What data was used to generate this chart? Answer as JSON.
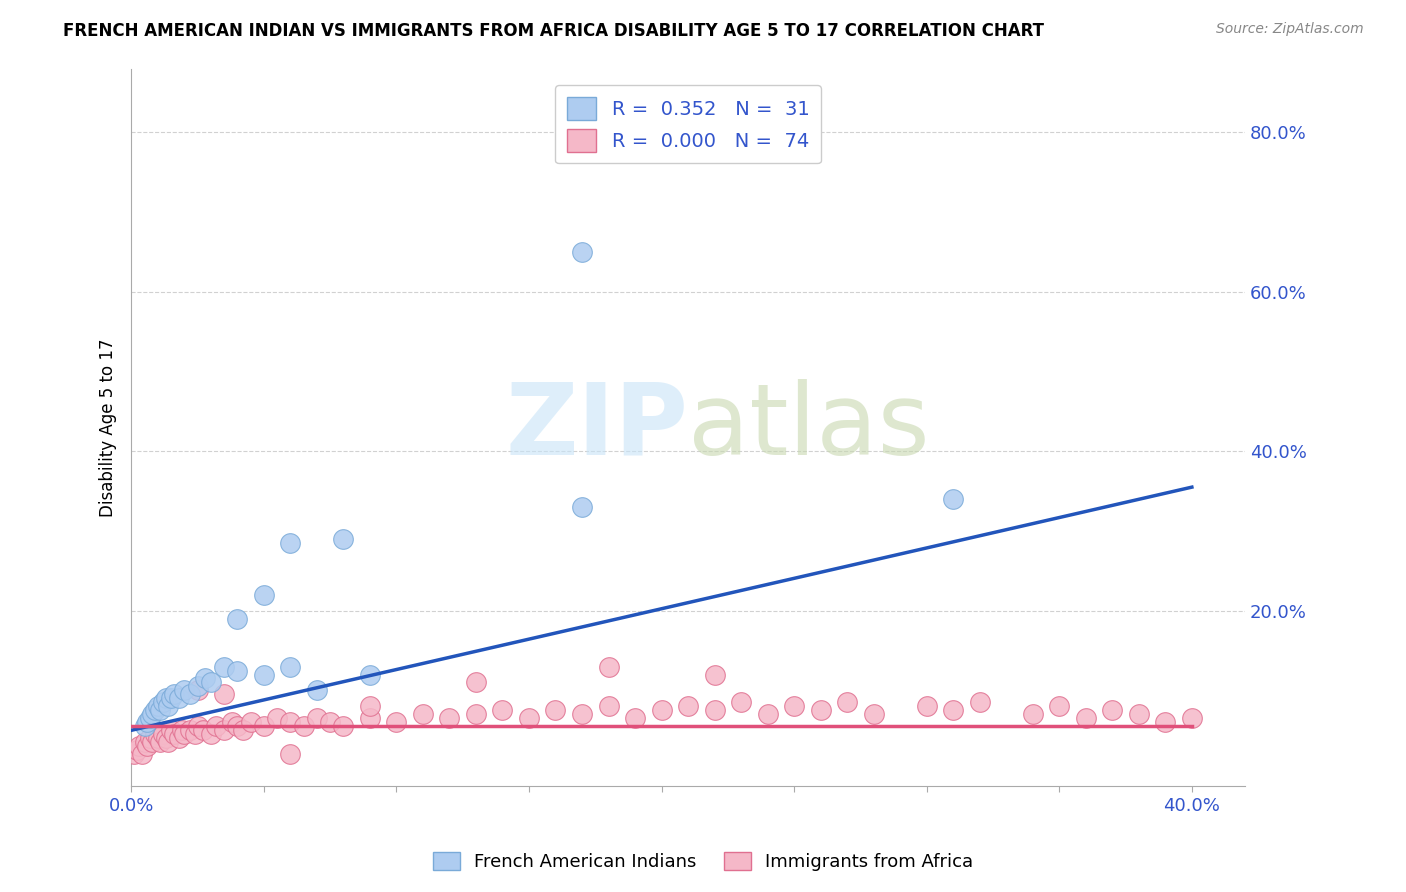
{
  "title": "FRENCH AMERICAN INDIAN VS IMMIGRANTS FROM AFRICA DISABILITY AGE 5 TO 17 CORRELATION CHART",
  "source": "Source: ZipAtlas.com",
  "ylabel": "Disability Age 5 to 17",
  "xlim": [
    0.0,
    0.42
  ],
  "ylim": [
    -0.02,
    0.88
  ],
  "xticks": [
    0.0,
    0.05,
    0.1,
    0.15,
    0.2,
    0.25,
    0.3,
    0.35,
    0.4
  ],
  "xtick_labels": [
    "0.0%",
    "",
    "",
    "",
    "",
    "",
    "",
    "",
    "40.0%"
  ],
  "ytick_vals_right": [
    0.2,
    0.4,
    0.6,
    0.8
  ],
  "ytick_labels_right": [
    "20.0%",
    "40.0%",
    "60.0%",
    "80.0%"
  ],
  "watermark_zip": "ZIP",
  "watermark_atlas": "atlas",
  "series1_name": "French American Indians",
  "series1_color": "#aeccf0",
  "series1_border": "#7aaad8",
  "series1_R": "0.352",
  "series1_N": "31",
  "series1_line_color": "#2255bb",
  "series2_name": "Immigrants from Africa",
  "series2_color": "#f5b8c8",
  "series2_border": "#e07090",
  "series2_R": "0.000",
  "series2_N": "74",
  "series2_line_color": "#e0507a",
  "legend_text_color": "#3355cc",
  "background_color": "#ffffff",
  "grid_color": "#cccccc",
  "blue_line_x0": 0.0,
  "blue_line_y0": 0.05,
  "blue_line_x1": 0.4,
  "blue_line_y1": 0.355,
  "pink_line_x0": 0.0,
  "pink_line_y0": 0.055,
  "pink_line_x1": 0.4,
  "pink_line_y1": 0.055,
  "blue_x": [
    0.005,
    0.006,
    0.007,
    0.008,
    0.009,
    0.01,
    0.011,
    0.012,
    0.013,
    0.014,
    0.015,
    0.016,
    0.018,
    0.02,
    0.022,
    0.025,
    0.028,
    0.03,
    0.035,
    0.04,
    0.05,
    0.06,
    0.07,
    0.09,
    0.04,
    0.05,
    0.06,
    0.08,
    0.17,
    0.31,
    0.17
  ],
  "blue_y": [
    0.055,
    0.06,
    0.065,
    0.07,
    0.075,
    0.08,
    0.075,
    0.085,
    0.09,
    0.08,
    0.09,
    0.095,
    0.09,
    0.1,
    0.095,
    0.105,
    0.115,
    0.11,
    0.13,
    0.125,
    0.12,
    0.13,
    0.1,
    0.12,
    0.19,
    0.22,
    0.285,
    0.29,
    0.33,
    0.34,
    0.65
  ],
  "pink_x": [
    0.001,
    0.002,
    0.003,
    0.004,
    0.005,
    0.006,
    0.007,
    0.008,
    0.009,
    0.01,
    0.011,
    0.012,
    0.013,
    0.014,
    0.015,
    0.016,
    0.018,
    0.019,
    0.02,
    0.022,
    0.024,
    0.025,
    0.027,
    0.03,
    0.032,
    0.035,
    0.038,
    0.04,
    0.042,
    0.045,
    0.05,
    0.055,
    0.06,
    0.065,
    0.07,
    0.075,
    0.08,
    0.09,
    0.1,
    0.11,
    0.12,
    0.13,
    0.14,
    0.15,
    0.16,
    0.17,
    0.18,
    0.19,
    0.2,
    0.21,
    0.22,
    0.23,
    0.24,
    0.25,
    0.26,
    0.27,
    0.28,
    0.3,
    0.31,
    0.32,
    0.34,
    0.35,
    0.36,
    0.37,
    0.38,
    0.39,
    0.4,
    0.025,
    0.035,
    0.18,
    0.22,
    0.09,
    0.13,
    0.06
  ],
  "pink_y": [
    0.02,
    0.025,
    0.03,
    0.02,
    0.035,
    0.03,
    0.04,
    0.035,
    0.045,
    0.04,
    0.035,
    0.045,
    0.04,
    0.035,
    0.05,
    0.045,
    0.04,
    0.05,
    0.045,
    0.05,
    0.045,
    0.055,
    0.05,
    0.045,
    0.055,
    0.05,
    0.06,
    0.055,
    0.05,
    0.06,
    0.055,
    0.065,
    0.06,
    0.055,
    0.065,
    0.06,
    0.055,
    0.065,
    0.06,
    0.07,
    0.065,
    0.07,
    0.075,
    0.065,
    0.075,
    0.07,
    0.08,
    0.065,
    0.075,
    0.08,
    0.075,
    0.085,
    0.07,
    0.08,
    0.075,
    0.085,
    0.07,
    0.08,
    0.075,
    0.085,
    0.07,
    0.08,
    0.065,
    0.075,
    0.07,
    0.06,
    0.065,
    0.1,
    0.095,
    0.13,
    0.12,
    0.08,
    0.11,
    0.02
  ]
}
